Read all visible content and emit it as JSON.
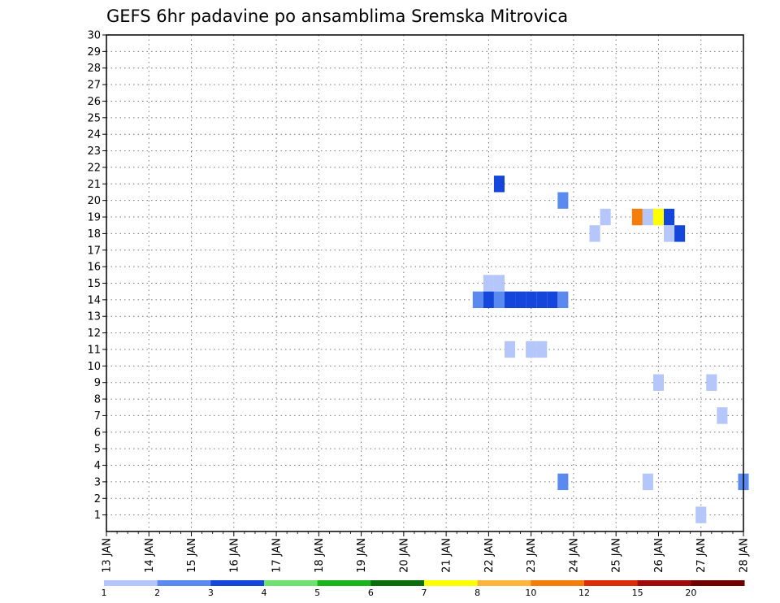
{
  "chart_data": {
    "type": "heatmap",
    "title": "GEFS 6hr padavine po ansamblima Sremska Mitrovica",
    "xlabel": "",
    "ylabel": "",
    "x_tick_labels": [
      "13 JAN",
      "14 JAN",
      "15 JAN",
      "16 JAN",
      "17 JAN",
      "18 JAN",
      "19 JAN",
      "20 JAN",
      "21 JAN",
      "22 JAN",
      "23 JAN",
      "24 JAN",
      "25 JAN",
      "26 JAN",
      "27 JAN",
      "28 JAN"
    ],
    "x_range_days": [
      0,
      15
    ],
    "y_tick_labels": [
      "1",
      "2",
      "3",
      "4",
      "5",
      "6",
      "7",
      "8",
      "9",
      "10",
      "11",
      "12",
      "13",
      "14",
      "15",
      "16",
      "17",
      "18",
      "19",
      "20",
      "21",
      "22",
      "23",
      "24",
      "25",
      "26",
      "27",
      "28",
      "29",
      "30"
    ],
    "y_range": [
      0,
      30
    ],
    "grid": true,
    "color_scale": {
      "labels": [
        "1",
        "2",
        "3",
        "4",
        "5",
        "6",
        "7",
        "8",
        "10",
        "12",
        "15",
        "20"
      ],
      "colors": [
        "#b4c6fa",
        "#5a8af0",
        "#1446dc",
        "#6fe16f",
        "#19b419",
        "#0a6e0a",
        "#ffff00",
        "#ffb43c",
        "#f57d0a",
        "#dc2d0a",
        "#a00a0a",
        "#6e0000"
      ]
    },
    "cells": [
      {
        "day": 9.25,
        "member": 21,
        "value": 3
      },
      {
        "day": 10.75,
        "member": 20,
        "value": 2
      },
      {
        "day": 11.75,
        "member": 19,
        "value": 1
      },
      {
        "day": 12.5,
        "member": 19,
        "value": 10
      },
      {
        "day": 12.75,
        "member": 19,
        "value": 1
      },
      {
        "day": 13.0,
        "member": 19,
        "value": 7
      },
      {
        "day": 13.25,
        "member": 19,
        "value": 3
      },
      {
        "day": 11.5,
        "member": 18,
        "value": 1
      },
      {
        "day": 13.25,
        "member": 18,
        "value": 1
      },
      {
        "day": 13.5,
        "member": 18,
        "value": 3
      },
      {
        "day": 9.0,
        "member": 15,
        "value": 1
      },
      {
        "day": 9.25,
        "member": 15,
        "value": 1
      },
      {
        "day": 8.75,
        "member": 14,
        "value": 2
      },
      {
        "day": 9.0,
        "member": 14,
        "value": 3
      },
      {
        "day": 9.25,
        "member": 14,
        "value": 2
      },
      {
        "day": 9.5,
        "member": 14,
        "value": 3
      },
      {
        "day": 9.75,
        "member": 14,
        "value": 3
      },
      {
        "day": 10.0,
        "member": 14,
        "value": 3
      },
      {
        "day": 10.25,
        "member": 14,
        "value": 3
      },
      {
        "day": 10.5,
        "member": 14,
        "value": 3
      },
      {
        "day": 10.75,
        "member": 14,
        "value": 2
      },
      {
        "day": 9.5,
        "member": 11,
        "value": 1
      },
      {
        "day": 10.0,
        "member": 11,
        "value": 1
      },
      {
        "day": 10.25,
        "member": 11,
        "value": 1
      },
      {
        "day": 13.0,
        "member": 9,
        "value": 1
      },
      {
        "day": 14.25,
        "member": 9,
        "value": 1
      },
      {
        "day": 14.5,
        "member": 7,
        "value": 1
      },
      {
        "day": 10.75,
        "member": 3,
        "value": 2
      },
      {
        "day": 12.75,
        "member": 3,
        "value": 1
      },
      {
        "day": 15.0,
        "member": 3,
        "value": 2
      },
      {
        "day": 14.0,
        "member": 1,
        "value": 1
      }
    ]
  }
}
